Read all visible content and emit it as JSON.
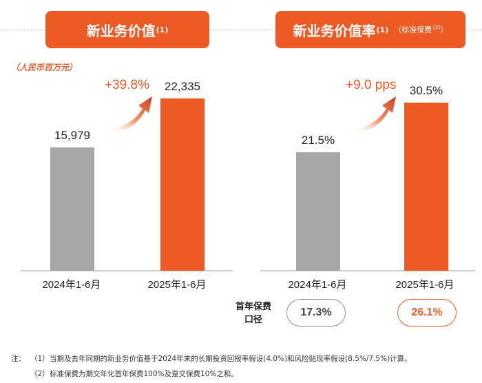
{
  "left_panel": {
    "title": "新业务价值",
    "title_note": "(1)",
    "unit": "（人民币百万元）",
    "growth": "+39.8%"
  },
  "right_panel": {
    "title": "新业务价值率",
    "title_note": "(1)",
    "subtitle": "（标准保费",
    "subtitle_note": "(2)",
    "subtitle_close": "）",
    "growth": "+9.0 pps",
    "basis_label_line1": "首年保费",
    "basis_label_line2": "口径",
    "basis_values": [
      "17.3%",
      "26.1%"
    ]
  },
  "chart_data": [
    {
      "type": "bar",
      "title": "新业务价值(1)",
      "ylabel": "人民币百万元",
      "categories": [
        "2024年1-6月",
        "2025年1-6月"
      ],
      "values": [
        15979,
        22335
      ],
      "value_labels": [
        "15,979",
        "22,335"
      ],
      "ylim": [
        0,
        25000
      ],
      "colors": [
        "#a6a6a6",
        "#ee5a24"
      ]
    },
    {
      "type": "bar",
      "title": "新业务价值率(1)（标准保费(2)）",
      "categories": [
        "2024年1-6月",
        "2025年1-6月"
      ],
      "values": [
        21.5,
        30.5
      ],
      "value_labels": [
        "21.5%",
        "30.5%"
      ],
      "ylim": [
        0,
        35
      ],
      "colors": [
        "#a6a6a6",
        "#ee5a24"
      ]
    }
  ],
  "notes": {
    "label": "注：",
    "items": [
      {
        "num": "（1）",
        "text": "当期及去年同期的新业务价值基于2024年末的长期投资回报率假设(4.0%)和风险贴现率假设(8.5%/7.5%)计算。"
      },
      {
        "num": "（2）",
        "text": "标准保费为期交年化首年保费100%及趸交保费10%之和。"
      }
    ]
  }
}
